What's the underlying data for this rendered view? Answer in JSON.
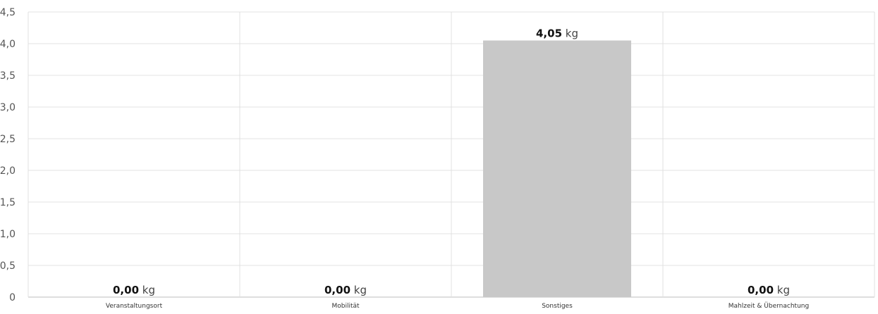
{
  "chart_data": {
    "type": "bar",
    "categories": [
      "Veranstaltungsort",
      "Mobilität",
      "Sonstiges",
      "Mahlzeit & Übernachtung"
    ],
    "values": [
      0.0,
      0.0,
      4.05,
      0.0
    ],
    "value_labels": [
      "0,00",
      "0,00",
      "4,05",
      "0,00"
    ],
    "unit": "kg",
    "ylim": [
      0,
      4.5
    ],
    "y_ticks": [
      "0",
      "0,5",
      "1,0",
      "1,5",
      "2,0",
      "2,5",
      "3,0",
      "3,5",
      "4,0",
      "4,5"
    ],
    "grid": true,
    "title": "",
    "xlabel": "",
    "ylabel": "",
    "bar_color": "#c8c8c8"
  }
}
